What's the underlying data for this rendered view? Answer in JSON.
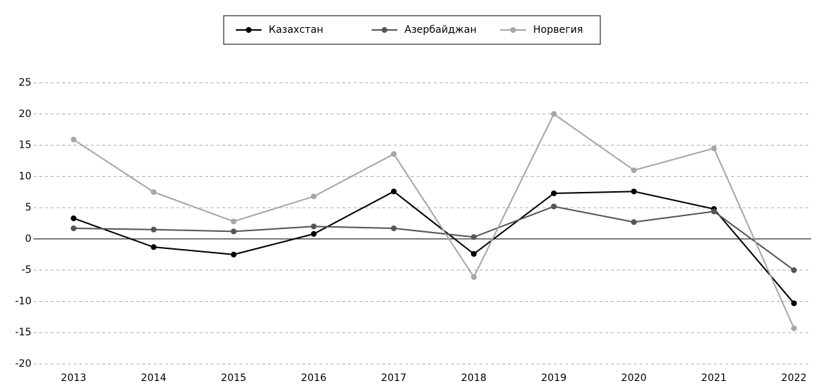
{
  "chart_data": {
    "type": "line",
    "categories": [
      "2013",
      "2014",
      "2015",
      "2016",
      "2017",
      "2018",
      "2019",
      "2020",
      "2021",
      "2022"
    ],
    "series": [
      {
        "name": "Казахстан",
        "color": "#000000",
        "values": [
          3.3,
          -1.3,
          -2.5,
          0.8,
          7.6,
          -2.4,
          7.3,
          7.6,
          4.8,
          -10.3
        ]
      },
      {
        "name": "Азербайджан",
        "color": "#555555",
        "values": [
          1.7,
          1.5,
          1.2,
          2.0,
          1.7,
          0.3,
          5.2,
          2.7,
          4.4,
          -5.0
        ]
      },
      {
        "name": "Норвегия",
        "color": "#a6a6a6",
        "values": [
          15.9,
          7.5,
          2.8,
          6.8,
          13.6,
          -6.1,
          20.0,
          11.0,
          14.5,
          -14.3
        ]
      }
    ],
    "ylim": [
      -20,
      25
    ],
    "yticks": [
      -20,
      -15,
      -10,
      -5,
      0,
      5,
      10,
      15,
      20,
      25
    ],
    "grid": true,
    "legend": "top"
  }
}
